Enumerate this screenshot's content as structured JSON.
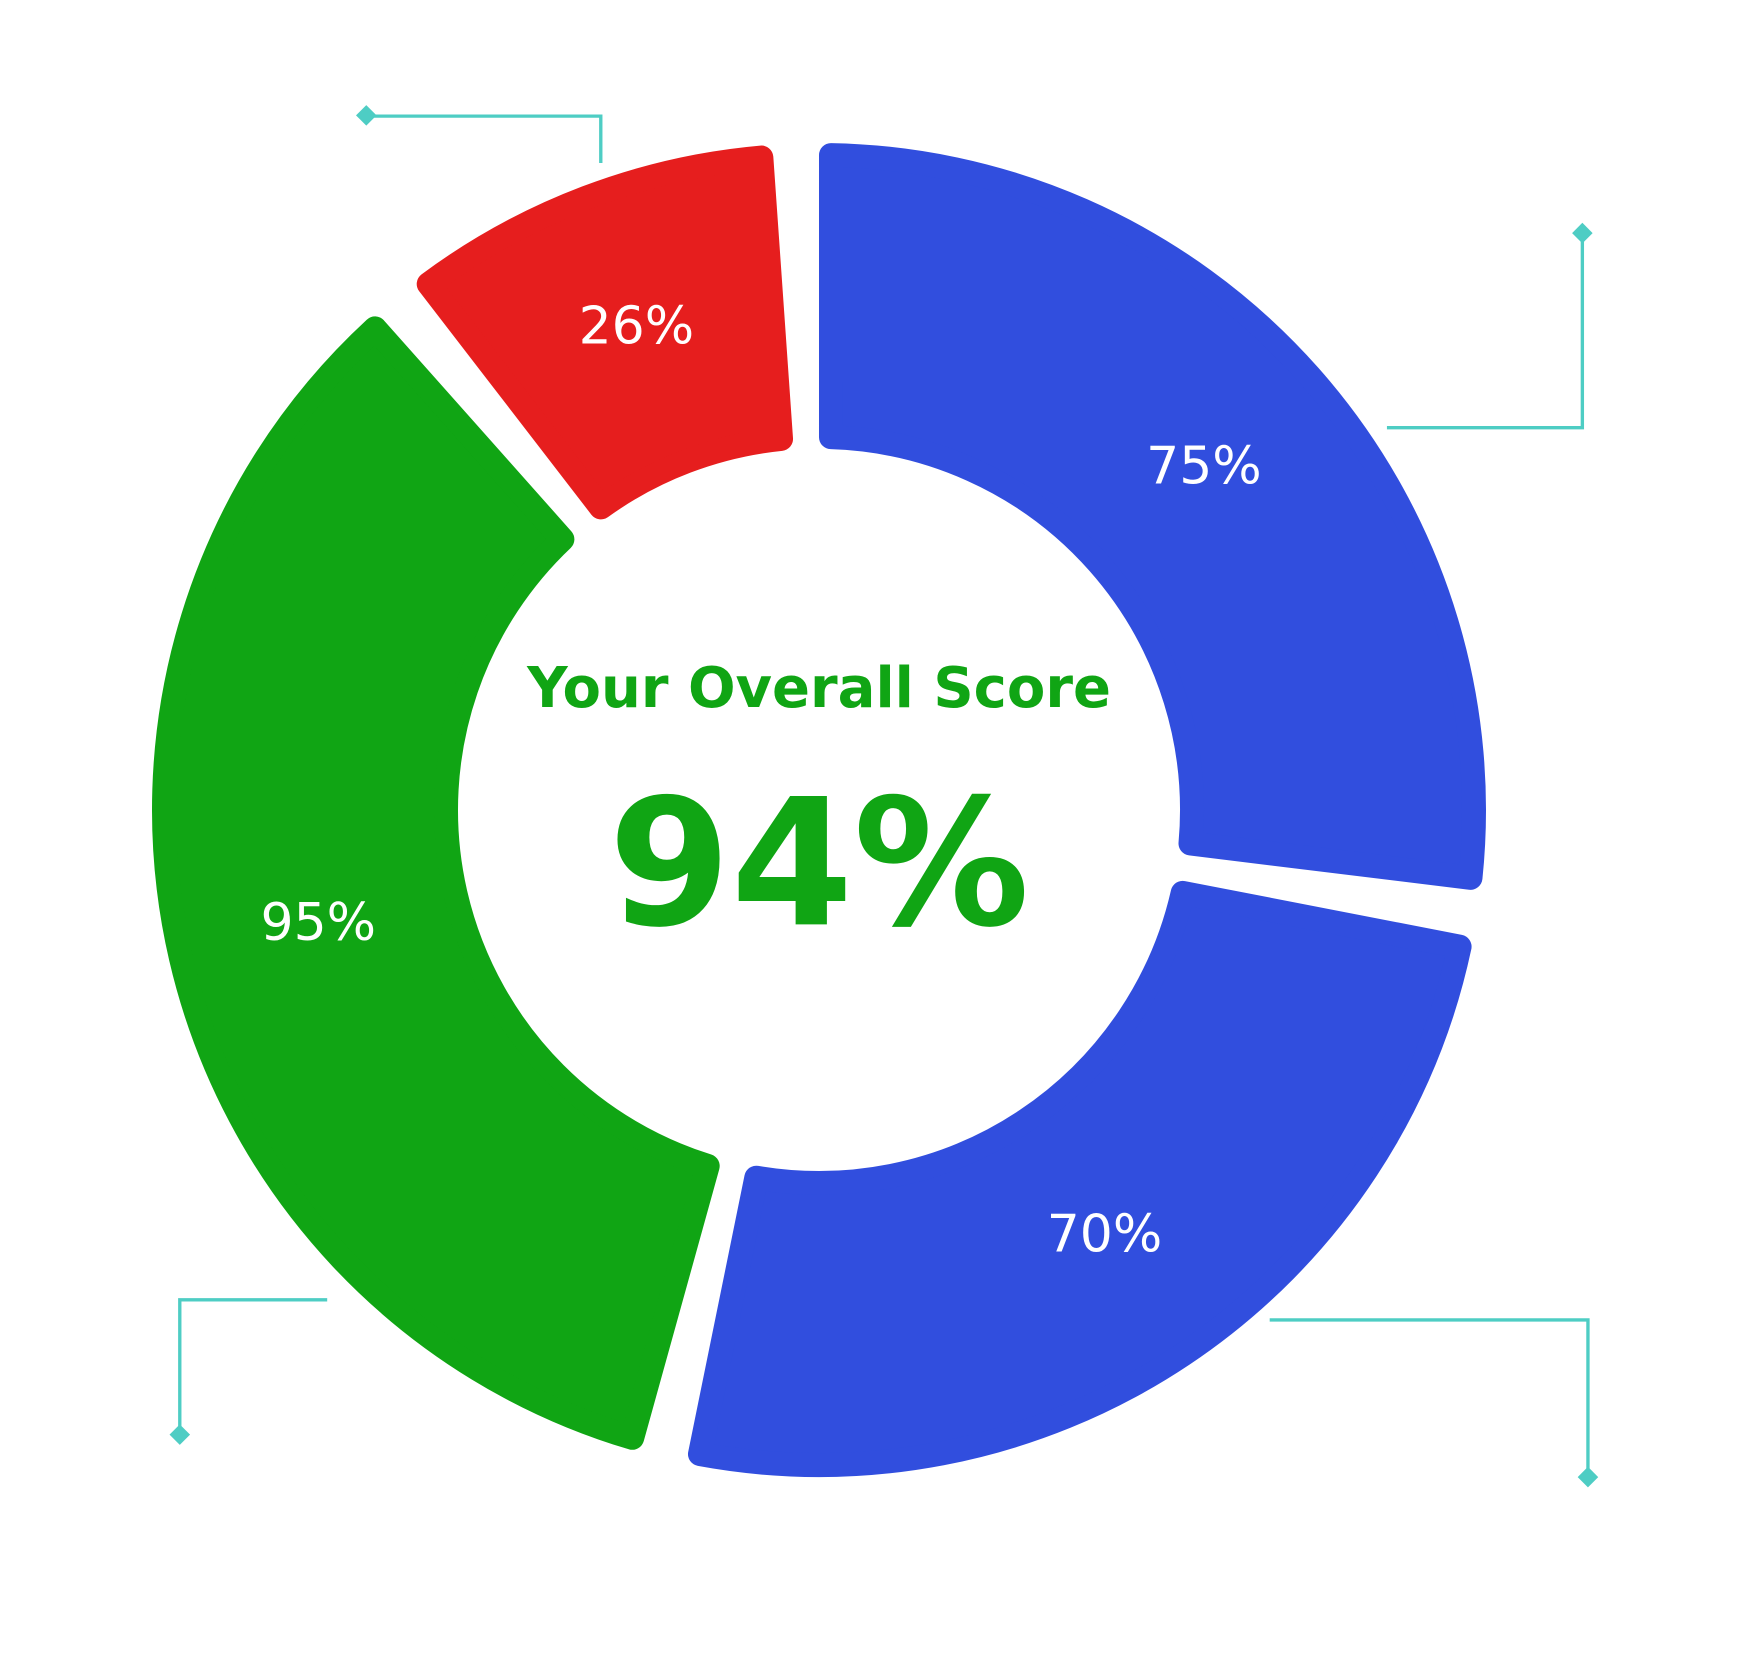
{
  "chart_data": {
    "type": "donut",
    "title": "Your Overall Score",
    "center_text": "94%",
    "values": [
      75,
      70,
      95,
      26
    ],
    "value_labels": [
      "75%",
      "70%",
      "95%",
      "26%"
    ],
    "colors": [
      "#314ede",
      "#314ede",
      "#10a514",
      "#e61e1e"
    ]
  }
}
